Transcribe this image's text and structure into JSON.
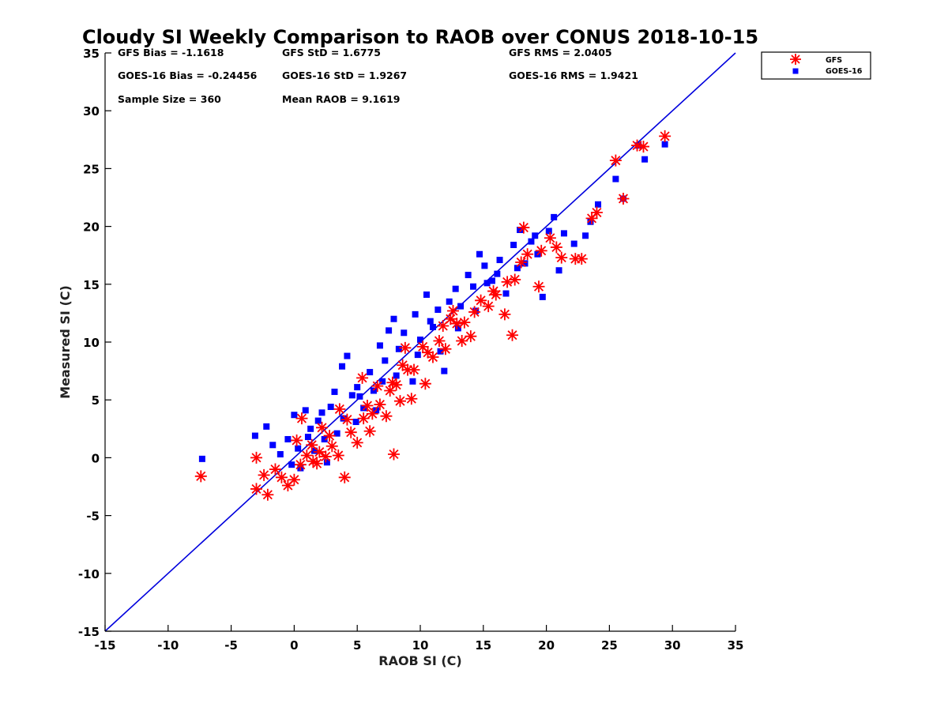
{
  "chart_data": {
    "type": "scatter",
    "title": "Cloudy SI Weekly Comparison to RAOB over CONUS 2018-10-15",
    "xlabel": "RAOB SI (C)",
    "ylabel": "Measured SI (C)",
    "xlim": [
      -15,
      35
    ],
    "ylim": [
      -15,
      35
    ],
    "xticks": [
      "-15",
      "-10",
      "-5",
      "0",
      "5",
      "10",
      "15",
      "20",
      "25",
      "30",
      "35"
    ],
    "yticks": [
      "-15",
      "-10",
      "-5",
      "0",
      "5",
      "10",
      "15",
      "20",
      "25",
      "30",
      "35"
    ],
    "grid": false,
    "legend_position": "top-right outside",
    "reference_line": {
      "x": [
        -15,
        35
      ],
      "y": [
        -15,
        35
      ],
      "color": "#0000dd"
    },
    "stats": {
      "gfs_bias": "GFS Bias = -1.1618",
      "gfs_std": "GFS StD = 1.6775",
      "gfs_rms": "GFS RMS = 2.0405",
      "goes_bias": "GOES-16 Bias = -0.24456",
      "goes_std": "GOES-16 StD = 1.9267",
      "goes_rms": "GOES-16 RMS = 1.9421",
      "sample_size": "Sample Size = 360",
      "mean_raob": "Mean RAOB = 9.1619"
    },
    "series": [
      {
        "name": "GFS",
        "marker": "asterisk",
        "color": "#ff0000",
        "points": [
          [
            -7.4,
            -1.6
          ],
          [
            -3,
            0
          ],
          [
            -3,
            -2.7
          ],
          [
            -2.1,
            -3.2
          ],
          [
            -1.5,
            -1
          ],
          [
            -1,
            -1.7
          ],
          [
            -0.5,
            -2.4
          ],
          [
            0,
            -1.9
          ],
          [
            0.5,
            -0.6
          ],
          [
            1,
            0.2
          ],
          [
            1.5,
            -0.3
          ],
          [
            2,
            0.5
          ],
          [
            2.5,
            0.1
          ],
          [
            3,
            1
          ],
          [
            3.5,
            0.2
          ],
          [
            4,
            -1.7
          ],
          [
            4.5,
            2.2
          ],
          [
            5,
            1.3
          ],
          [
            5.5,
            3.4
          ],
          [
            6,
            2.3
          ],
          [
            6.2,
            3.8
          ],
          [
            6.8,
            4.6
          ],
          [
            7.3,
            3.6
          ],
          [
            7.9,
            0.3
          ],
          [
            7.6,
            5.8
          ],
          [
            8.1,
            6.3
          ],
          [
            8.4,
            4.9
          ],
          [
            8.6,
            8
          ],
          [
            9.3,
            5.1
          ],
          [
            9.5,
            7.6
          ],
          [
            10.2,
            9.6
          ],
          [
            10.4,
            6.4
          ],
          [
            11,
            8.7
          ],
          [
            11.5,
            10.1
          ],
          [
            12,
            9.4
          ],
          [
            12.4,
            12
          ],
          [
            12.9,
            11.6
          ],
          [
            13.3,
            10.1
          ],
          [
            14,
            10.5
          ],
          [
            14.3,
            12.6
          ],
          [
            14.8,
            13.6
          ],
          [
            15.4,
            13.1
          ],
          [
            16,
            14.1
          ],
          [
            16.7,
            12.4
          ],
          [
            17.3,
            10.6
          ],
          [
            17.5,
            15.4
          ],
          [
            18,
            16.9
          ],
          [
            18.5,
            17.6
          ],
          [
            19.4,
            14.8
          ],
          [
            19.6,
            17.9
          ],
          [
            20.3,
            19
          ],
          [
            20.8,
            18.2
          ],
          [
            21.2,
            17.3
          ],
          [
            22.3,
            17.2
          ],
          [
            22.8,
            17.2
          ],
          [
            23.6,
            20.7
          ],
          [
            24,
            21.2
          ],
          [
            25.5,
            25.7
          ],
          [
            26.1,
            22.4
          ],
          [
            27.2,
            27
          ],
          [
            27.7,
            26.9
          ],
          [
            29.4,
            27.8
          ],
          [
            0.6,
            3.4
          ],
          [
            1.4,
            1.1
          ],
          [
            2.2,
            2.6
          ],
          [
            3.6,
            4.2
          ],
          [
            4.2,
            3.3
          ],
          [
            5.4,
            6.9
          ],
          [
            6.6,
            6.2
          ],
          [
            7.8,
            6.5
          ],
          [
            9,
            7.6
          ],
          [
            10.6,
            9.1
          ],
          [
            11.8,
            11.4
          ],
          [
            13.5,
            11.7
          ],
          [
            15.8,
            14.4
          ],
          [
            16.9,
            15.2
          ],
          [
            18.2,
            19.9
          ],
          [
            -2.4,
            -1.5
          ],
          [
            0.2,
            1.5
          ],
          [
            1.8,
            -0.5
          ],
          [
            2.8,
            1.9
          ],
          [
            5.8,
            4.5
          ],
          [
            8.8,
            9.5
          ],
          [
            12.6,
            12.7
          ]
        ]
      },
      {
        "name": "GOES-16",
        "marker": "square",
        "color": "#0000ff",
        "points": [
          [
            -7.3,
            -0.1
          ],
          [
            -3.1,
            1.9
          ],
          [
            -2.2,
            2.7
          ],
          [
            -1.7,
            1.1
          ],
          [
            -1.1,
            0.3
          ],
          [
            -0.5,
            1.6
          ],
          [
            0,
            3.7
          ],
          [
            0.3,
            0.8
          ],
          [
            0.9,
            4.1
          ],
          [
            1.3,
            2.5
          ],
          [
            1.9,
            3.2
          ],
          [
            2.4,
            1.6
          ],
          [
            2.9,
            4.4
          ],
          [
            3.4,
            2.1
          ],
          [
            3.8,
            7.9
          ],
          [
            4.2,
            8.8
          ],
          [
            4.6,
            5.4
          ],
          [
            5,
            6.1
          ],
          [
            5.5,
            4.3
          ],
          [
            6,
            7.4
          ],
          [
            6.3,
            5.8
          ],
          [
            6.8,
            9.7
          ],
          [
            7.2,
            8.4
          ],
          [
            7.5,
            11
          ],
          [
            7.9,
            12
          ],
          [
            8.3,
            9.4
          ],
          [
            8.7,
            10.8
          ],
          [
            9.4,
            6.6
          ],
          [
            9.6,
            12.4
          ],
          [
            10,
            10.2
          ],
          [
            10.5,
            14.1
          ],
          [
            11,
            11.3
          ],
          [
            11.4,
            12.8
          ],
          [
            11.9,
            7.5
          ],
          [
            12.3,
            13.5
          ],
          [
            12.8,
            14.6
          ],
          [
            13.2,
            13.1
          ],
          [
            13.8,
            15.8
          ],
          [
            14.4,
            12.7
          ],
          [
            14.7,
            17.6
          ],
          [
            15.1,
            16.6
          ],
          [
            15.7,
            15.3
          ],
          [
            16.3,
            17.1
          ],
          [
            16.8,
            14.2
          ],
          [
            17.4,
            18.4
          ],
          [
            17.9,
            19.7
          ],
          [
            18.3,
            16.8
          ],
          [
            18.8,
            18.7
          ],
          [
            19.3,
            17.6
          ],
          [
            19.7,
            13.9
          ],
          [
            20.2,
            19.6
          ],
          [
            20.6,
            20.8
          ],
          [
            21,
            16.2
          ],
          [
            21.4,
            19.4
          ],
          [
            22.2,
            18.5
          ],
          [
            23.1,
            19.2
          ],
          [
            23.5,
            20.4
          ],
          [
            24.1,
            21.9
          ],
          [
            25.5,
            24.1
          ],
          [
            26.1,
            22.4
          ],
          [
            27.3,
            27
          ],
          [
            27.8,
            25.8
          ],
          [
            29.4,
            27.1
          ],
          [
            0.5,
            -0.9
          ],
          [
            1.6,
            0.6
          ],
          [
            2.6,
            -0.4
          ],
          [
            3.2,
            5.7
          ],
          [
            4.9,
            3.1
          ],
          [
            6.5,
            4.1
          ],
          [
            8.1,
            7.1
          ],
          [
            9.8,
            8.9
          ],
          [
            11.6,
            9.2
          ],
          [
            13,
            11.2
          ],
          [
            14.2,
            14.8
          ],
          [
            16.1,
            15.9
          ],
          [
            17.7,
            16.4
          ],
          [
            19.1,
            19.2
          ],
          [
            -0.2,
            -0.6
          ],
          [
            1.1,
            1.8
          ],
          [
            2.2,
            3.9
          ],
          [
            3.9,
            3.4
          ],
          [
            5.2,
            5.3
          ],
          [
            7,
            6.6
          ],
          [
            10.8,
            11.8
          ],
          [
            15.3,
            15.1
          ]
        ]
      }
    ]
  }
}
